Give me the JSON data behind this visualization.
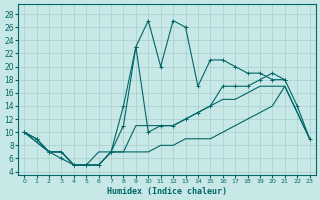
{
  "xlabel": "Humidex (Indice chaleur)",
  "bg_color": "#c8e8e8",
  "line_color": "#006666",
  "grid_color": "#a8cccc",
  "xlim": [
    -0.5,
    23.5
  ],
  "ylim": [
    3.5,
    29.5
  ],
  "yticks": [
    4,
    6,
    8,
    10,
    12,
    14,
    16,
    18,
    20,
    22,
    24,
    26,
    28
  ],
  "xticks": [
    0,
    1,
    2,
    3,
    4,
    5,
    6,
    7,
    8,
    9,
    10,
    11,
    12,
    13,
    14,
    15,
    16,
    17,
    18,
    19,
    20,
    21,
    22,
    23
  ],
  "series_spiky": {
    "x": [
      0,
      1,
      2,
      3,
      4,
      5,
      6,
      7,
      8,
      9,
      10,
      11,
      12,
      13,
      14,
      15,
      16,
      17,
      18,
      19,
      20,
      21
    ],
    "y": [
      10,
      9,
      7,
      7,
      5,
      5,
      5,
      7,
      14,
      23,
      27,
      20,
      27,
      26,
      17,
      21,
      21,
      20,
      19,
      19,
      18,
      18
    ]
  },
  "series_mid": {
    "x": [
      0,
      1,
      2,
      3,
      4,
      5,
      6,
      7,
      8,
      9,
      10,
      11,
      12,
      13,
      14,
      15,
      16,
      17,
      18,
      19,
      20,
      21,
      22,
      23
    ],
    "y": [
      10,
      9,
      7,
      6,
      5,
      5,
      5,
      7,
      11,
      23,
      10,
      11,
      11,
      12,
      13,
      14,
      17,
      17,
      17,
      18,
      19,
      18,
      14,
      9
    ]
  },
  "series_low1": {
    "x": [
      0,
      2,
      3,
      4,
      5,
      6,
      7,
      8,
      9,
      10,
      11,
      12,
      13,
      14,
      15,
      16,
      17,
      18,
      19,
      20,
      21,
      22,
      23
    ],
    "y": [
      10,
      7,
      7,
      5,
      5,
      5,
      7,
      7,
      11,
      11,
      11,
      11,
      12,
      13,
      14,
      15,
      15,
      16,
      17,
      17,
      17,
      13,
      9
    ]
  },
  "series_low2": {
    "x": [
      0,
      2,
      3,
      4,
      5,
      6,
      7,
      8,
      9,
      10,
      11,
      12,
      13,
      14,
      15,
      16,
      17,
      18,
      19,
      20,
      21,
      22,
      23
    ],
    "y": [
      10,
      7,
      7,
      5,
      5,
      7,
      7,
      7,
      7,
      7,
      8,
      8,
      9,
      9,
      9,
      10,
      11,
      12,
      13,
      14,
      17,
      13,
      9
    ]
  }
}
